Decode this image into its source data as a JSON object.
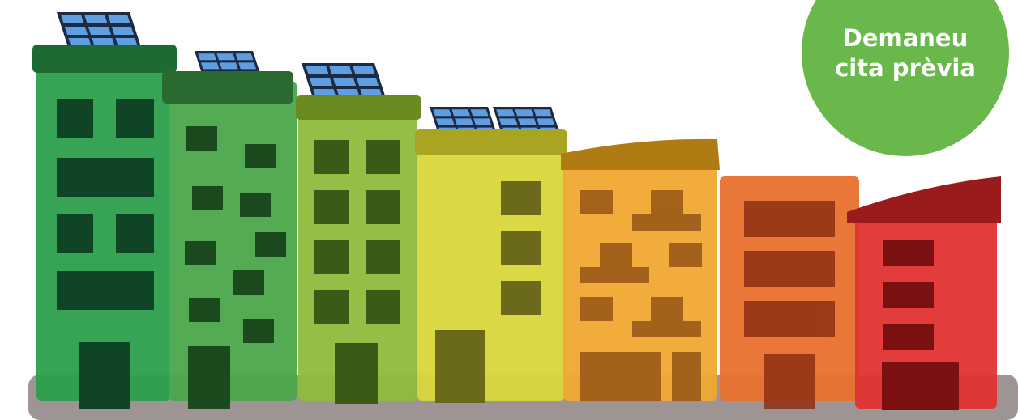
{
  "button": {
    "lines": [
      "Demaneu",
      "cita prèvia"
    ]
  }
}
